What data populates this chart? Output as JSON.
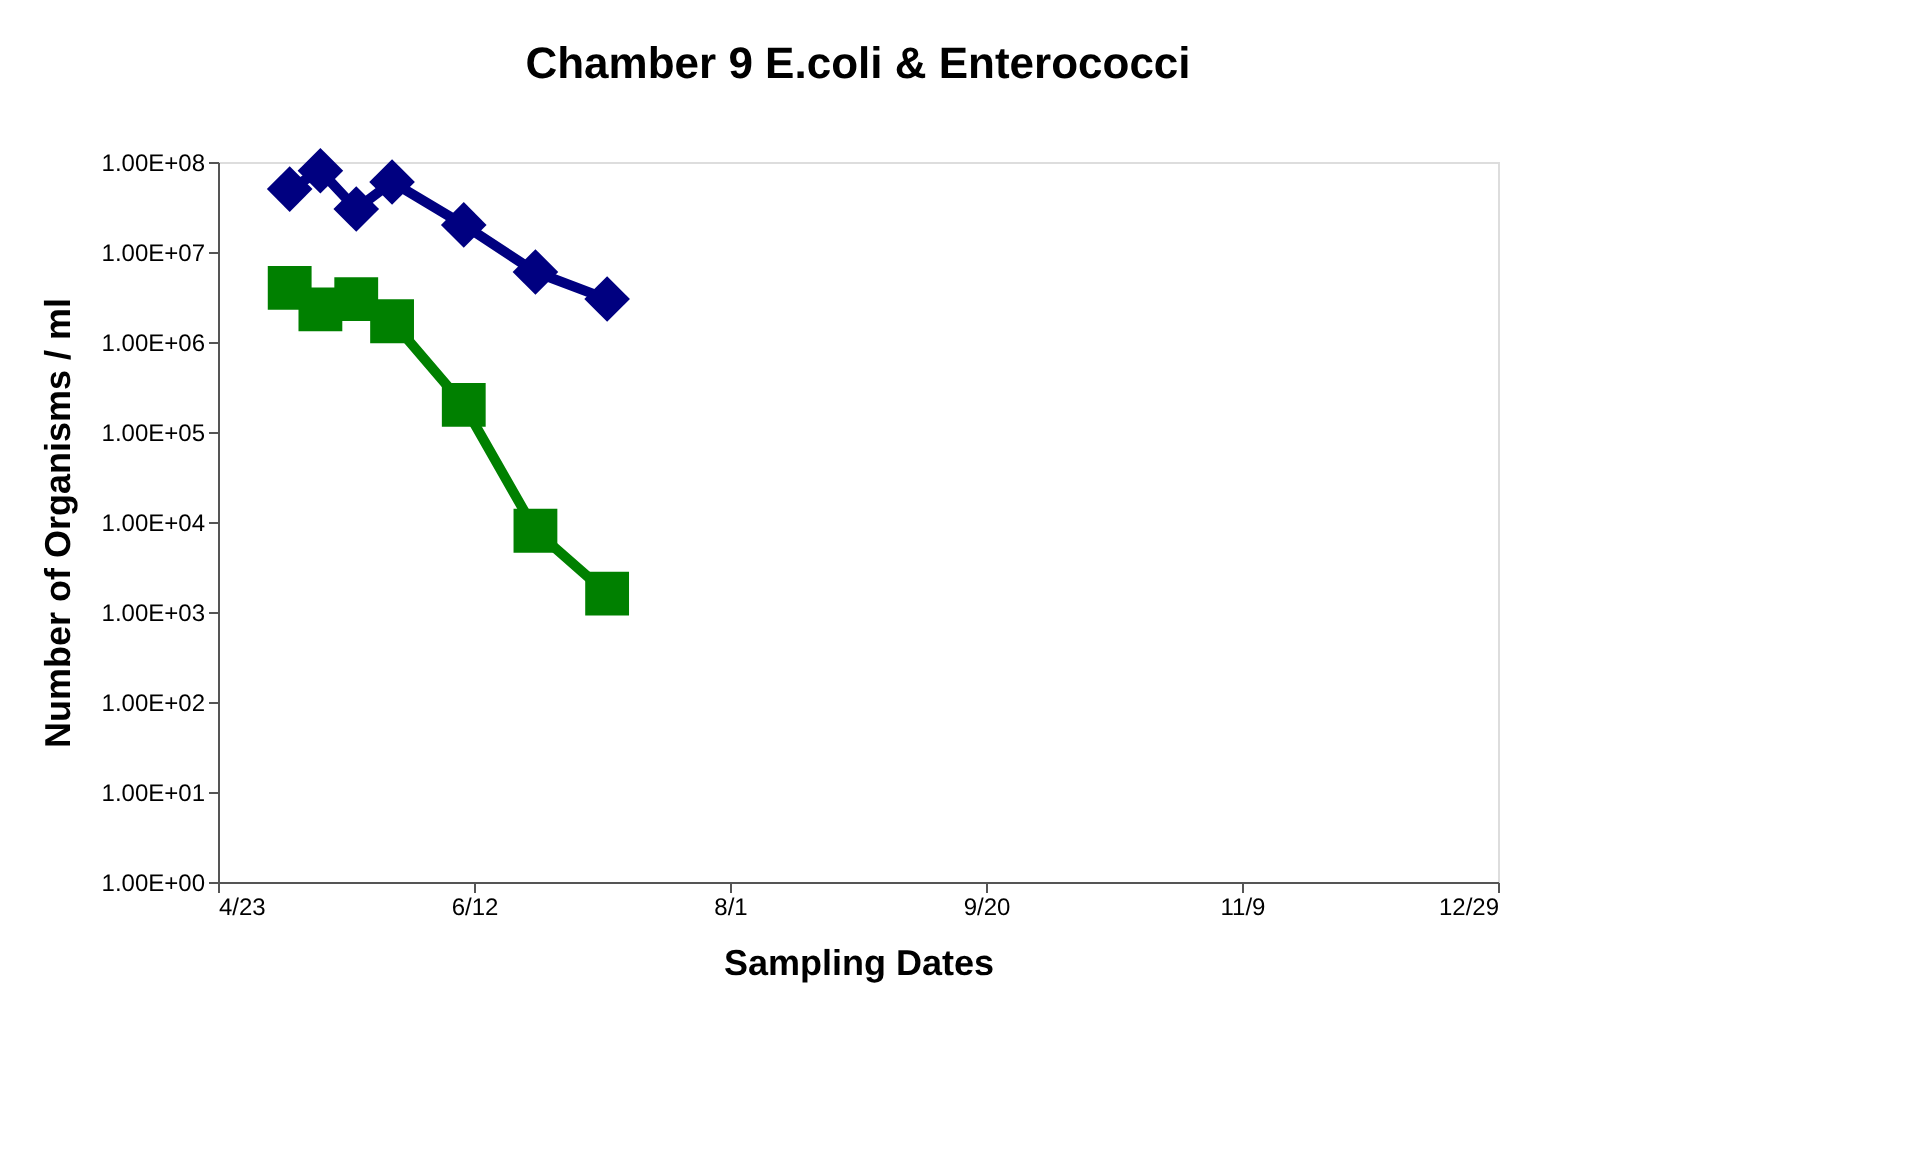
{
  "chart_data": {
    "type": "line",
    "title": "Chamber 9 E.coli & Enterococci",
    "xlabel": "Sampling Dates",
    "ylabel": "Number of Organisms / ml",
    "x": [
      "--05-07",
      "--05-13",
      "--05-20",
      "--05-27",
      "--06-10",
      "--06-24",
      "--07-08"
    ],
    "series": [
      {
        "color": "#000080",
        "marker": "diamond",
        "values": [
          50000000,
          80000000,
          30000000,
          60000000,
          20000000,
          6000000,
          3000000
        ]
      },
      {
        "color": "#008000",
        "marker": "square",
        "values": [
          4000000,
          2300000,
          3000000,
          1700000,
          200000,
          8000,
          1600
        ]
      }
    ],
    "log": "y",
    "ylim": [
      1,
      100000000
    ],
    "yticks": [
      {
        "value": 1,
        "label": "1.00E+00"
      },
      {
        "value": 10,
        "label": "1.00E+01"
      },
      {
        "value": 100,
        "label": "1.00E+02"
      },
      {
        "value": 1000,
        "label": "1.00E+03"
      },
      {
        "value": 10000,
        "label": "1.00E+04"
      },
      {
        "value": 100000,
        "label": "1.00E+05"
      },
      {
        "value": 1000000,
        "label": "1.00E+06"
      },
      {
        "value": 10000000,
        "label": "1.00E+07"
      },
      {
        "value": 100000000,
        "label": "1.00E+08"
      }
    ],
    "xlim": [
      "--04-23",
      "--12-29"
    ],
    "xticks": [
      {
        "value": "--04-23",
        "label": "4/23"
      },
      {
        "value": "--06-12",
        "label": "6/12"
      },
      {
        "value": "--08-01",
        "label": "8/1"
      },
      {
        "value": "--09-20",
        "label": "9/20"
      },
      {
        "value": "--11-09",
        "label": "11/9"
      },
      {
        "value": "--12-29",
        "label": "12/29"
      }
    ],
    "grid": false,
    "line_style": "solid"
  }
}
